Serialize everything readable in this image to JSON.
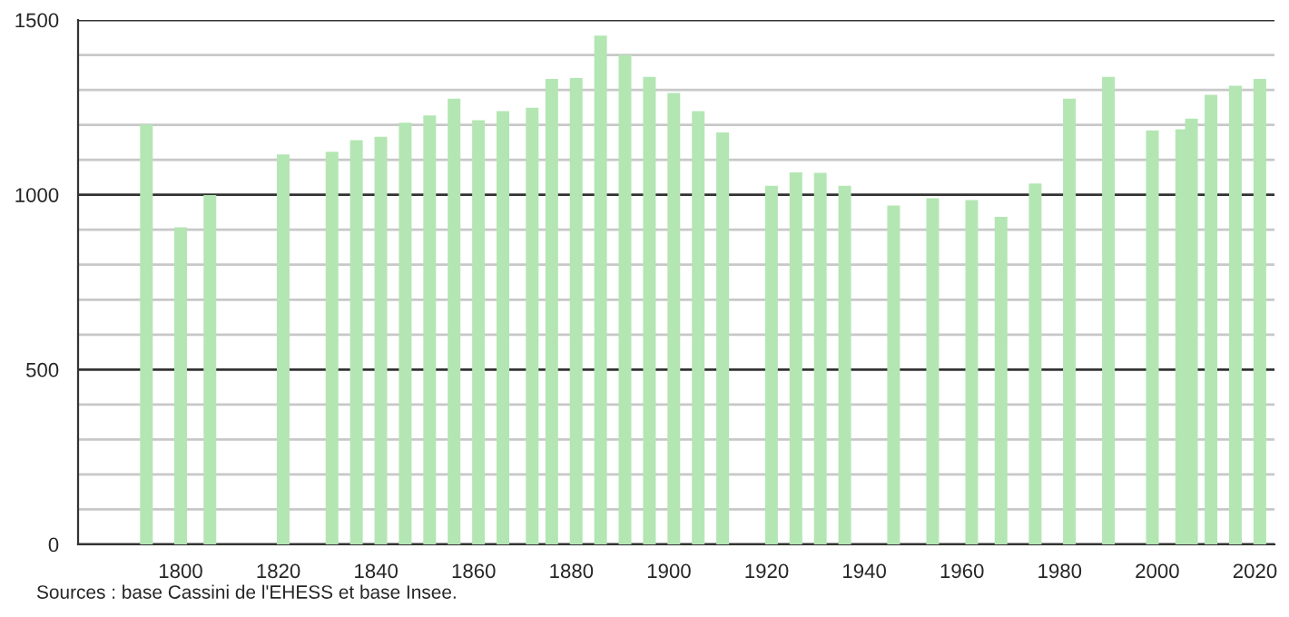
{
  "chart_data": {
    "type": "bar",
    "x": [
      1793,
      1800,
      1806,
      1821,
      1831,
      1836,
      1841,
      1846,
      1851,
      1856,
      1861,
      1866,
      1872,
      1876,
      1881,
      1886,
      1891,
      1896,
      1901,
      1906,
      1911,
      1921,
      1926,
      1931,
      1936,
      1946,
      1954,
      1962,
      1968,
      1975,
      1982,
      1990,
      1999,
      2005,
      2007,
      2011,
      2016,
      2021
    ],
    "values": [
      1201,
      907,
      999,
      1115,
      1123,
      1156,
      1166,
      1206,
      1227,
      1275,
      1213,
      1239,
      1249,
      1331,
      1334,
      1455,
      1400,
      1337,
      1291,
      1239,
      1178,
      1026,
      1064,
      1063,
      1026,
      969,
      990,
      985,
      937,
      1032,
      1275,
      1337,
      1184,
      1187,
      1218,
      1286,
      1312,
      1331
    ],
    "color": "#b3e6b3",
    "xlim": [
      1779,
      2024
    ],
    "xticks": [
      1800,
      1820,
      1840,
      1860,
      1880,
      1900,
      1920,
      1940,
      1960,
      1980,
      2000,
      2020
    ],
    "ylim": [
      0,
      1500
    ],
    "yticks": [
      0,
      {
        "value": 100,
        "label": null
      },
      {
        "value": 200,
        "label": null
      },
      {
        "value": 300,
        "label": null
      },
      {
        "value": 400,
        "label": null
      },
      500,
      {
        "value": 600,
        "label": null
      },
      {
        "value": 700,
        "label": null
      },
      {
        "value": 800,
        "label": null
      },
      {
        "value": 900,
        "label": null
      },
      1000,
      {
        "value": 1100,
        "label": null
      },
      {
        "value": 1200,
        "label": null
      },
      {
        "value": 1300,
        "label": null
      },
      {
        "value": 1400,
        "label": null
      },
      1500
    ],
    "grid": "y",
    "annotations": [
      "Sources : base Cassini de l'EHESS et base Insee."
    ]
  }
}
